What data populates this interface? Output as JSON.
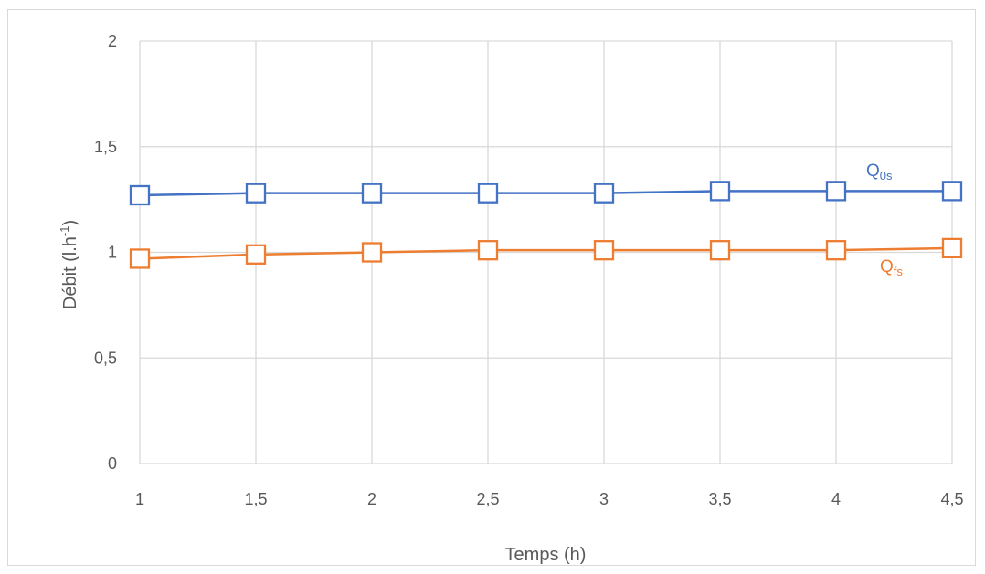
{
  "chart_data": {
    "type": "line",
    "x": [
      1,
      1.5,
      2,
      2.5,
      3,
      3.5,
      4,
      4.5
    ],
    "xlim": [
      1,
      4.5
    ],
    "ylim": [
      0,
      2
    ],
    "xticks": [
      "1",
      "1,5",
      "2",
      "2,5",
      "3",
      "3,5",
      "4",
      "4,5"
    ],
    "yticks": [
      "0",
      "0,5",
      "1",
      "1,5",
      "2"
    ],
    "xlabel": "Temps (h)",
    "ylabel": {
      "main": "Débit (l.h",
      "sup": "-1",
      "close": ")"
    },
    "grid": true,
    "legend": "inline labels at right end of each series",
    "marker": "open-square",
    "series": [
      {
        "name": "Q0s",
        "label_main": "Q",
        "label_sub": "0s",
        "color": "#4472c4",
        "values": [
          1.27,
          1.28,
          1.28,
          1.28,
          1.28,
          1.29,
          1.29,
          1.29
        ]
      },
      {
        "name": "Qfs",
        "label_main": "Q",
        "label_sub": "fs",
        "color": "#ed7d31",
        "values": [
          0.97,
          0.99,
          1.0,
          1.01,
          1.01,
          1.01,
          1.01,
          1.02
        ]
      }
    ]
  }
}
